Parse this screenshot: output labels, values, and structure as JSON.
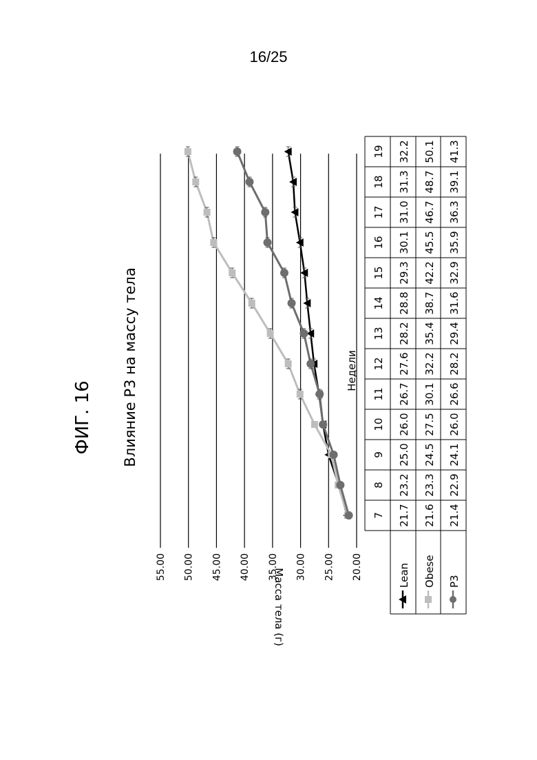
{
  "page_number": "16/25",
  "figure_label": "ФИГ. 16",
  "colors": {
    "lean": "#000000",
    "obese": "#bdbdbd",
    "p3": "#6e6e6e"
  },
  "chart_data": {
    "type": "line",
    "title": "Влияние P3 на массу тела",
    "xlabel": "Недели",
    "ylabel": "Масса тела (г)",
    "ylim": [
      20,
      55
    ],
    "yticks": [
      "20.00",
      "25.00",
      "30.00",
      "35.00",
      "40.00",
      "45.00",
      "50.00",
      "55.00"
    ],
    "grid": true,
    "categories": [
      "7",
      "8",
      "9",
      "10",
      "11",
      "12",
      "13",
      "14",
      "15",
      "16",
      "17",
      "18",
      "19"
    ],
    "series": [
      {
        "name": "Lean",
        "marker": "triangle",
        "color": "#000000",
        "values": [
          21.7,
          23.2,
          25.0,
          26.0,
          26.7,
          27.6,
          28.2,
          28.8,
          29.3,
          30.1,
          31.0,
          31.3,
          32.2
        ]
      },
      {
        "name": "Obese",
        "marker": "square",
        "color": "#bdbdbd",
        "values": [
          21.6,
          23.3,
          24.5,
          27.5,
          30.1,
          32.2,
          35.4,
          38.7,
          42.2,
          45.5,
          46.7,
          48.7,
          50.1
        ]
      },
      {
        "name": "P3",
        "marker": "circle",
        "color": "#6e6e6e",
        "values": [
          21.4,
          22.9,
          24.1,
          26.0,
          26.6,
          28.2,
          29.4,
          31.6,
          32.9,
          35.9,
          36.3,
          39.1,
          41.3
        ]
      }
    ],
    "table": {
      "rows": [
        {
          "label": "Lean",
          "values": [
            "21.7",
            "23.2",
            "25.0",
            "26.0",
            "26.7",
            "27.6",
            "28.2",
            "28.8",
            "29.3",
            "30.1",
            "31.0",
            "31.3",
            "32.2"
          ]
        },
        {
          "label": "Obese",
          "values": [
            "21.6",
            "23.3",
            "24.5",
            "27.5",
            "30.1",
            "32.2",
            "35.4",
            "38.7",
            "42.2",
            "45.5",
            "46.7",
            "48.7",
            "50.1"
          ]
        },
        {
          "label": "P3",
          "values": [
            "21.4",
            "22.9",
            "24.1",
            "26.0",
            "26.6",
            "28.2",
            "29.4",
            "31.6",
            "32.9",
            "35.9",
            "36.3",
            "39.1",
            "41.3"
          ]
        }
      ]
    }
  }
}
